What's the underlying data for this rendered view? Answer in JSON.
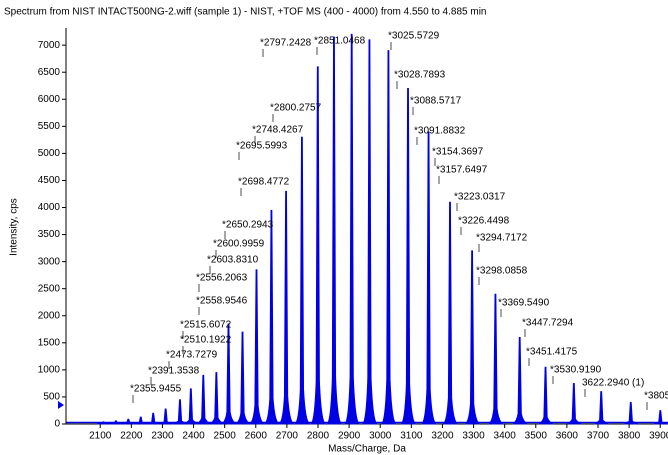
{
  "chart_data": {
    "type": "spectrum",
    "title": "Spectrum from NIST INTACT500NG-2.wiff (sample 1) - NIST, +TOF MS (400 - 4000) from 4.550 to 4.885 min",
    "x_label": "Mass/Charge, Da",
    "y_label": "Intensity, cps",
    "color": "#0000e6",
    "xlim": [
      1990,
      3925
    ],
    "ylim": [
      0,
      7280
    ],
    "xticks": [
      2100,
      2200,
      2300,
      2400,
      2500,
      2600,
      2700,
      2800,
      2900,
      3000,
      3100,
      3200,
      3300,
      3400,
      3500,
      3600,
      3700,
      3800,
      3900
    ],
    "yticks": [
      0,
      500,
      1000,
      1500,
      2000,
      2500,
      3000,
      3500,
      4000,
      4500,
      5000,
      5500,
      6000,
      6500,
      7000
    ],
    "x": [
      2110,
      2150,
      2190,
      2230,
      2270,
      2310,
      2356,
      2391,
      2431,
      2473,
      2512,
      2557,
      2602,
      2650,
      2697,
      2748,
      2799,
      2851,
      2908,
      2965,
      3026,
      3089,
      3155,
      3224,
      3295,
      3370,
      3448,
      3531,
      3622,
      3710,
      3805,
      3900
    ],
    "values": [
      40,
      60,
      90,
      130,
      200,
      280,
      450,
      650,
      900,
      950,
      1850,
      1700,
      2850,
      3950,
      4300,
      5300,
      6600,
      7150,
      7200,
      7100,
      6900,
      6200,
      5400,
      4100,
      3200,
      2400,
      1600,
      1050,
      750,
      600,
      400,
      250
    ],
    "annotations": [
      "*2355.9455",
      "*2391.3538",
      "*2473.7279",
      "*2510.1922",
      "*2515.6072",
      "*2558.9546",
      "*2556.2063",
      "*2603.8310",
      "*2600.9959",
      "*2650.2943",
      "*2698.4772",
      "*2695.5993",
      "*2748.4267",
      "*2800.2757",
      "*2797.2428",
      "*2851.0468",
      "*3025.5729",
      "*3028.7893",
      "*3088.5717",
      "*3091.8832",
      "*3154.3697",
      "*3157.6497",
      "*3223.0317",
      "*3226.4498",
      "*3294.7172",
      "*3298.0858",
      "*3369.5490",
      "*3447.7294",
      "*3451.4175",
      "*3530.9190",
      "3622.2940 (1)",
      "*3805"
    ]
  }
}
